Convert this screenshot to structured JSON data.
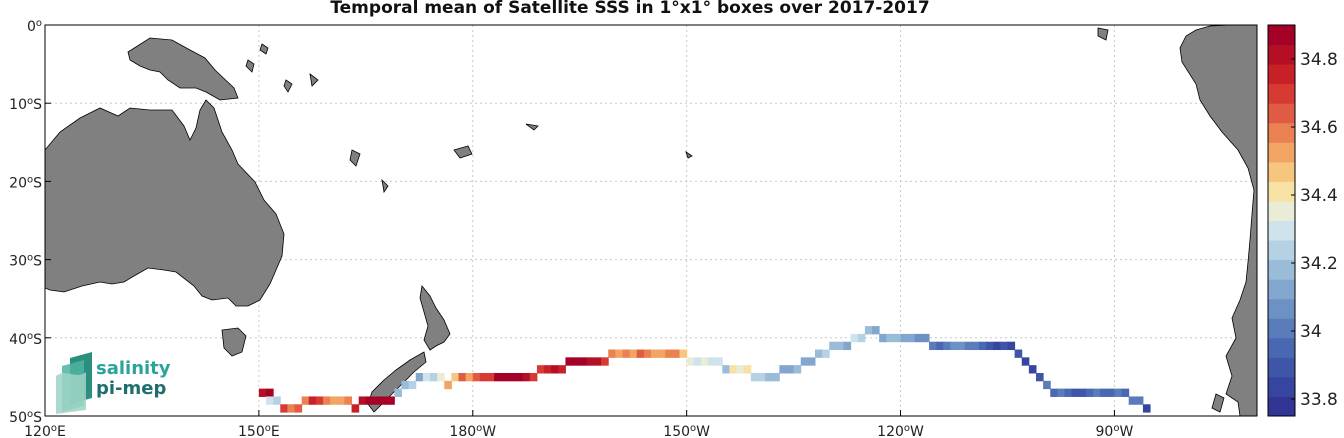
{
  "title": "Temporal mean of Satellite SSS in 1°x1° boxes over 2017-2017",
  "map": {
    "lon_range": [
      120,
      290
    ],
    "lat_range": [
      -50,
      0
    ],
    "lon_ticks": [
      {
        "value": 120,
        "deg": "120",
        "hemi": "E"
      },
      {
        "value": 150,
        "deg": "150",
        "hemi": "E"
      },
      {
        "value": 180,
        "deg": "180",
        "hemi": "W"
      },
      {
        "value": 210,
        "deg": "150",
        "hemi": "W"
      },
      {
        "value": 240,
        "deg": "120",
        "hemi": "W"
      },
      {
        "value": 270,
        "deg": "90",
        "hemi": "W"
      }
    ],
    "lat_ticks": [
      {
        "value": 0,
        "deg": "0",
        "hemi": ""
      },
      {
        "value": -10,
        "deg": "10",
        "hemi": "S"
      },
      {
        "value": -20,
        "deg": "20",
        "hemi": "S"
      },
      {
        "value": -30,
        "deg": "30",
        "hemi": "S"
      },
      {
        "value": -40,
        "deg": "40",
        "hemi": "S"
      },
      {
        "value": -50,
        "deg": "50",
        "hemi": "S"
      }
    ],
    "grid": true,
    "land_color": "#808080"
  },
  "colorbar": {
    "min": 33.75,
    "max": 34.9,
    "ticks": [
      "33.8",
      "34",
      "34.2",
      "34.4",
      "34.6",
      "34.8"
    ],
    "colors": [
      "#313695",
      "#36459f",
      "#3f56a8",
      "#4a68b2",
      "#5a7cbb",
      "#6c91c5",
      "#83a6cf",
      "#9abcd9",
      "#b4d2e4",
      "#cee3ec",
      "#e9ecd6",
      "#f7e1a4",
      "#f6c67f",
      "#f1a463",
      "#ea8152",
      "#e05b43",
      "#d73a33",
      "#c72127",
      "#b50f26",
      "#a50026"
    ]
  },
  "logo": {
    "line1": "salinity",
    "line2": "pi-mep"
  },
  "chart_data": {
    "type": "heatmap",
    "title": "Temporal mean of Satellite SSS in 1°x1° boxes over 2017-2017",
    "xlabel": "",
    "ylabel": "",
    "xlim": [
      120,
      290
    ],
    "ylim": [
      -50,
      0
    ],
    "cells_desc": "[lon, lat, SSS] for 1x1 degree boxes along ship track",
    "cells": [
      [
        150,
        -47,
        34.82
      ],
      [
        151,
        -47,
        34.85
      ],
      [
        151,
        -48,
        34.3
      ],
      [
        152,
        -48,
        34.25
      ],
      [
        153,
        -49,
        34.7
      ],
      [
        154,
        -49,
        34.58
      ],
      [
        155,
        -49,
        34.62
      ],
      [
        156,
        -48,
        34.6
      ],
      [
        157,
        -48,
        34.75
      ],
      [
        158,
        -48,
        34.72
      ],
      [
        159,
        -48,
        34.6
      ],
      [
        160,
        -48,
        34.55
      ],
      [
        161,
        -48,
        34.55
      ],
      [
        162,
        -48,
        34.6
      ],
      [
        163,
        -49,
        34.75
      ],
      [
        164,
        -48,
        34.82
      ],
      [
        165,
        -48,
        34.9
      ],
      [
        166,
        -48,
        34.88
      ],
      [
        167,
        -48,
        34.92
      ],
      [
        168,
        -48,
        34.85
      ],
      [
        169,
        -47,
        34.2
      ],
      [
        170,
        -46,
        34.18
      ],
      [
        171,
        -46,
        34.22
      ],
      [
        172,
        -45,
        34.15
      ],
      [
        173,
        -45,
        34.3
      ],
      [
        174,
        -45,
        34.25
      ],
      [
        175,
        -45,
        34.35
      ],
      [
        176,
        -46,
        34.5
      ],
      [
        177,
        -45,
        34.45
      ],
      [
        178,
        -45,
        34.62
      ],
      [
        179,
        -45,
        34.55
      ],
      [
        180,
        -45,
        34.65
      ],
      [
        181,
        -45,
        34.68
      ],
      [
        182,
        -45,
        34.72
      ],
      [
        183,
        -45,
        34.85
      ],
      [
        184,
        -45,
        34.88
      ],
      [
        185,
        -45,
        34.92
      ],
      [
        186,
        -45,
        34.95
      ],
      [
        187,
        -45,
        34.8
      ],
      [
        188,
        -45,
        34.72
      ],
      [
        189,
        -44,
        34.7
      ],
      [
        190,
        -44,
        34.75
      ],
      [
        191,
        -44,
        34.8
      ],
      [
        192,
        -44,
        34.78
      ],
      [
        193,
        -43,
        34.9
      ],
      [
        194,
        -43,
        34.88
      ],
      [
        195,
        -43,
        34.85
      ],
      [
        196,
        -43,
        34.8
      ],
      [
        197,
        -43,
        34.82
      ],
      [
        198,
        -43,
        34.7
      ],
      [
        199,
        -42,
        34.6
      ],
      [
        200,
        -42,
        34.55
      ],
      [
        201,
        -42,
        34.58
      ],
      [
        202,
        -42,
        34.5
      ],
      [
        203,
        -42,
        34.62
      ],
      [
        204,
        -42,
        34.6
      ],
      [
        205,
        -42,
        34.55
      ],
      [
        206,
        -42,
        34.52
      ],
      [
        207,
        -42,
        34.58
      ],
      [
        208,
        -42,
        34.6
      ],
      [
        209,
        -42,
        34.48
      ],
      [
        210,
        -43,
        34.38
      ],
      [
        211,
        -43,
        34.32
      ],
      [
        212,
        -43,
        34.35
      ],
      [
        213,
        -43,
        34.3
      ],
      [
        214,
        -43,
        34.28
      ],
      [
        215,
        -44,
        34.2
      ],
      [
        216,
        -44,
        34.42
      ],
      [
        217,
        -44,
        34.38
      ],
      [
        218,
        -44,
        34.4
      ],
      [
        219,
        -45,
        34.22
      ],
      [
        220,
        -45,
        34.25
      ],
      [
        221,
        -45,
        34.18
      ],
      [
        222,
        -45,
        34.2
      ],
      [
        223,
        -44,
        34.15
      ],
      [
        224,
        -44,
        34.12
      ],
      [
        225,
        -44,
        34.18
      ],
      [
        226,
        -43,
        34.12
      ],
      [
        227,
        -43,
        34.15
      ],
      [
        228,
        -42,
        34.2
      ],
      [
        229,
        -42,
        34.22
      ],
      [
        230,
        -41,
        34.18
      ],
      [
        231,
        -41,
        34.2
      ],
      [
        232,
        -41,
        34.15
      ],
      [
        233,
        -40,
        34.3
      ],
      [
        234,
        -40,
        34.25
      ],
      [
        235,
        -39,
        34.18
      ],
      [
        236,
        -39,
        34.12
      ],
      [
        237,
        -40,
        34.15
      ],
      [
        238,
        -40,
        34.2
      ],
      [
        239,
        -40,
        34.18
      ],
      [
        240,
        -40,
        34.1
      ],
      [
        241,
        -40,
        34.15
      ],
      [
        242,
        -40,
        34.08
      ],
      [
        243,
        -40,
        34.05
      ],
      [
        244,
        -41,
        34.02
      ],
      [
        245,
        -41,
        33.95
      ],
      [
        246,
        -41,
        34.0
      ],
      [
        247,
        -41,
        34.05
      ],
      [
        248,
        -41,
        34.08
      ],
      [
        249,
        -41,
        34.02
      ],
      [
        250,
        -41,
        34.0
      ],
      [
        251,
        -41,
        33.95
      ],
      [
        252,
        -41,
        33.9
      ],
      [
        253,
        -41,
        33.85
      ],
      [
        254,
        -41,
        33.9
      ],
      [
        255,
        -41,
        33.85
      ],
      [
        256,
        -42,
        33.88
      ],
      [
        257,
        -43,
        33.85
      ],
      [
        258,
        -44,
        33.82
      ],
      [
        259,
        -45,
        33.9
      ],
      [
        260,
        -46,
        34.0
      ],
      [
        261,
        -47,
        33.95
      ],
      [
        262,
        -47,
        34.0
      ],
      [
        263,
        -47,
        33.95
      ],
      [
        264,
        -47,
        33.9
      ],
      [
        265,
        -47,
        33.92
      ],
      [
        266,
        -47,
        33.95
      ],
      [
        267,
        -47,
        34.0
      ],
      [
        268,
        -47,
        33.95
      ],
      [
        269,
        -47,
        33.98
      ],
      [
        270,
        -47,
        34.0
      ],
      [
        271,
        -47,
        33.95
      ],
      [
        272,
        -48,
        34.02
      ],
      [
        273,
        -48,
        34.0
      ],
      [
        274,
        -49,
        33.85
      ]
    ]
  }
}
